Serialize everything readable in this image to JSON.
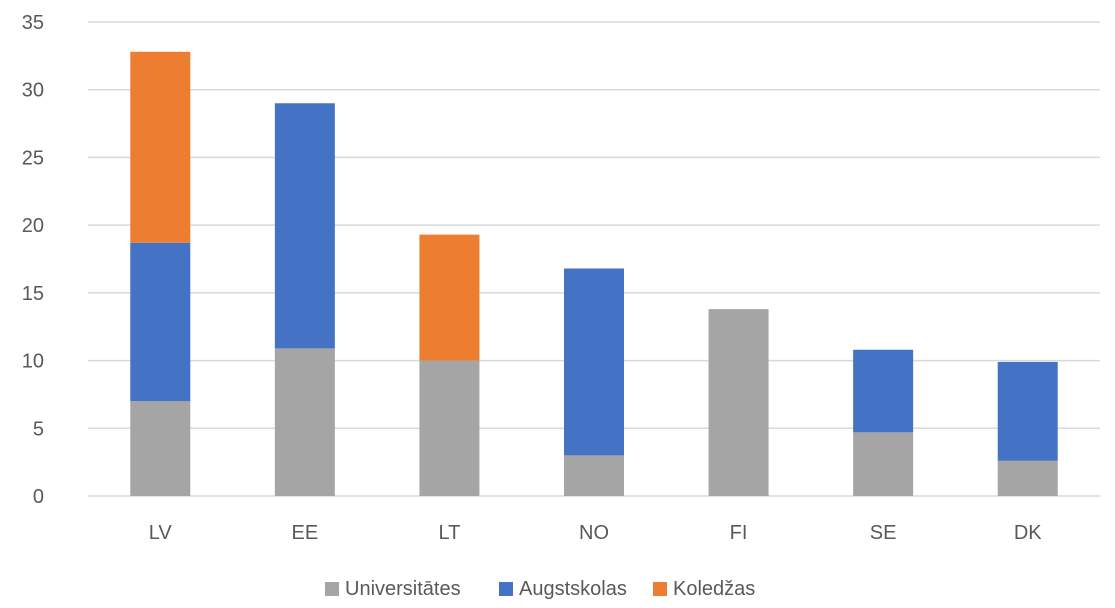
{
  "chart_data": {
    "type": "bar",
    "stacked": true,
    "categories": [
      "LV",
      "EE",
      "LT",
      "NO",
      "FI",
      "SE",
      "DK"
    ],
    "series": [
      {
        "name": "Universitātes",
        "color": "#a5a5a5",
        "values": [
          7.0,
          10.9,
          10.0,
          3.0,
          13.8,
          4.7,
          2.6
        ]
      },
      {
        "name": "Augstskolas",
        "color": "#4472c4",
        "values": [
          11.7,
          18.1,
          0,
          13.8,
          0,
          6.1,
          7.3
        ]
      },
      {
        "name": "Koledžas",
        "color": "#ed7d31",
        "values": [
          14.1,
          0,
          9.3,
          0,
          0,
          0,
          0
        ]
      }
    ],
    "y_ticks": [
      "0",
      "5",
      "10",
      "15",
      "20",
      "25",
      "30",
      "35"
    ],
    "ylim": [
      0,
      35
    ],
    "grid": true,
    "legend_position": "bottom"
  }
}
